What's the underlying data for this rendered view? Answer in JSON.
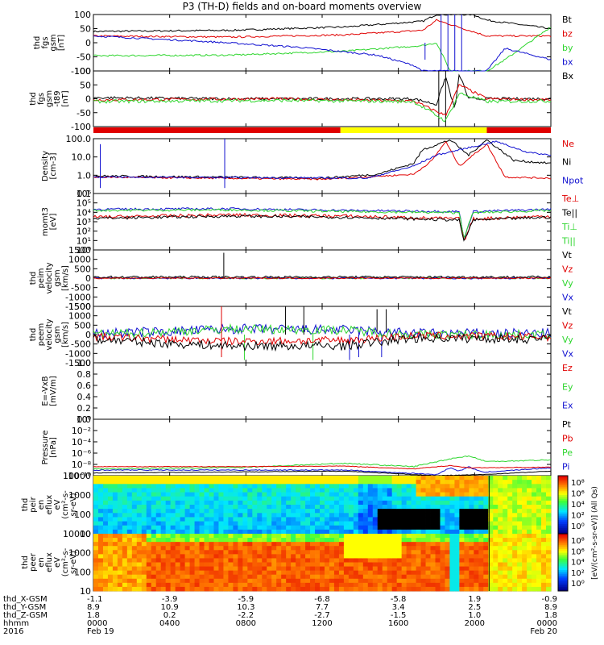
{
  "title": "P3 (TH-D) fields and on-board moments overview",
  "colors": {
    "black": "#000000",
    "red": "#e00000",
    "green": "#2fd62f",
    "blue": "#1010d0",
    "yellow": "#ffff00"
  },
  "panels": [
    {
      "id": "fgs",
      "ylabel": [
        "thd",
        "fgs",
        "gsm",
        "[nT]"
      ],
      "yticks": [
        "100",
        "50",
        "0",
        "-50",
        "-100"
      ],
      "legend": [
        {
          "text": "Bt",
          "color": "black"
        },
        {
          "text": "bz",
          "color": "red"
        },
        {
          "text": "by",
          "color": "green"
        },
        {
          "text": "bx",
          "color": "blue"
        }
      ]
    },
    {
      "id": "fgs_dsl",
      "ylabel": [
        "thd",
        "fgs",
        "gsm",
        "-t89",
        "[nT]"
      ],
      "yticks": [
        "100",
        "50",
        "0",
        "-50",
        "-100"
      ],
      "legend": [
        {
          "text": "Bx",
          "color": "black"
        }
      ]
    },
    {
      "id": "density",
      "ylabel": [
        "Density",
        "[cm-3]"
      ],
      "yticks": [
        "100.0",
        "10.0",
        "1.0",
        "0.1"
      ],
      "legend": [
        {
          "text": "Ne",
          "color": "red"
        },
        {
          "text": "Ni",
          "color": "black"
        },
        {
          "text": "Npot",
          "color": "blue"
        }
      ]
    },
    {
      "id": "temp",
      "ylabel": [
        "momt3",
        "[eV]"
      ],
      "yticks": [
        "10⁶",
        "10⁵",
        "10⁴",
        "10³",
        "10²",
        "10¹",
        "10⁰"
      ],
      "legend": [
        {
          "text": "Te⊥",
          "color": "red"
        },
        {
          "text": "Te||",
          "color": "black"
        },
        {
          "text": "Ti⊥",
          "color": "green"
        },
        {
          "text": "Ti||",
          "color": "green"
        }
      ]
    },
    {
      "id": "peim_vel",
      "ylabel": [
        "thd",
        "peim",
        "velocity",
        "gsm",
        "[km/s]"
      ],
      "yticks": [
        "1500",
        "1000",
        "500",
        "0",
        "-500",
        "-1000",
        "-1500"
      ],
      "legend": [
        {
          "text": "Vt",
          "color": "black"
        },
        {
          "text": "Vz",
          "color": "red"
        },
        {
          "text": "Vy",
          "color": "green"
        },
        {
          "text": "Vx",
          "color": "blue"
        }
      ]
    },
    {
      "id": "peem_vel",
      "ylabel": [
        "thd",
        "peem",
        "velocity",
        "gsm",
        "[km/s]"
      ],
      "yticks": [
        "1500",
        "1000",
        "500",
        "0",
        "-500",
        "-1000",
        "-1500"
      ],
      "legend": [
        {
          "text": "Vt",
          "color": "black"
        },
        {
          "text": "Vz",
          "color": "red"
        },
        {
          "text": "Vy",
          "color": "green"
        },
        {
          "text": "Vx",
          "color": "blue"
        }
      ]
    },
    {
      "id": "efield",
      "ylabel": [
        "E=-VxB",
        "[mV/m]"
      ],
      "yticks": [
        "1.0",
        "0.8",
        "0.6",
        "0.4",
        "0.2",
        "0.0"
      ],
      "legend": [
        {
          "text": "Ez",
          "color": "red"
        },
        {
          "text": "Ey",
          "color": "green"
        },
        {
          "text": "Ex",
          "color": "blue"
        }
      ]
    },
    {
      "id": "pressure",
      "ylabel": [
        "Pressure",
        "[nPa]"
      ],
      "yticks": [
        "10⁰",
        "10⁻²",
        "10⁻⁴",
        "10⁻⁶",
        "10⁻⁸",
        "10⁻¹⁰"
      ],
      "legend": [
        {
          "text": "Pt",
          "color": "black"
        },
        {
          "text": "Pb",
          "color": "red"
        },
        {
          "text": "Pe",
          "color": "green"
        },
        {
          "text": "Pi",
          "color": "blue"
        }
      ]
    },
    {
      "id": "peir_spec",
      "ylabel": [
        "thd",
        "peir",
        "en",
        "eflux",
        "eV",
        "(cm²-s-",
        "sr-eV)"
      ],
      "yticks": [
        "10000",
        "1000",
        "100",
        "10"
      ],
      "legend": []
    },
    {
      "id": "peer_spec",
      "ylabel": [
        "thd",
        "peer",
        "en",
        "eflux",
        "eV",
        "(cm²-s-",
        "sr-eV)"
      ],
      "yticks": [
        "10000",
        "1000",
        "100",
        "10"
      ],
      "legend": []
    }
  ],
  "colorbar": {
    "ticks": [
      "10⁸",
      "10⁶",
      "10⁴",
      "10²",
      "10⁰"
    ],
    "label": "[eV/(cm²-s-sr-eV)] (All Qs)"
  },
  "footer": {
    "rows": [
      {
        "label": "thd_X-GSM",
        "values": [
          "-1.1",
          "-3.9",
          "-5.9",
          "-6.8",
          "-5.8",
          "1.9",
          "-0.9"
        ]
      },
      {
        "label": "thd_Y-GSM",
        "values": [
          "8.9",
          "10.9",
          "10.3",
          "7.7",
          "3.4",
          "2.5",
          "8.9"
        ]
      },
      {
        "label": "thd_Z-GSM",
        "values": [
          "1.8",
          "0.2",
          "-2.2",
          "-2.7",
          "-1.5",
          "1.0",
          "1.8"
        ]
      },
      {
        "label": "hhmm",
        "values": [
          "0000",
          "0400",
          "0800",
          "1200",
          "1600",
          "2000",
          "0000"
        ]
      },
      {
        "label": "2016",
        "values": [
          "Feb 19",
          "",
          "",
          "",
          "",
          "",
          "Feb 20"
        ]
      }
    ]
  },
  "chart_data": {
    "type": "line",
    "title": "P3 (TH-D) fields and on-board moments overview",
    "x": [
      "0000",
      "0400",
      "0800",
      "1200",
      "1600",
      "2000",
      "0000"
    ],
    "xlabel": "hhmm",
    "series": [
      {
        "name": "Bt",
        "panel": "fgs",
        "values": [
          40,
          45,
          55,
          60,
          80,
          100,
          95
        ]
      },
      {
        "name": "bz",
        "panel": "fgs",
        "values": [
          25,
          20,
          25,
          30,
          45,
          100,
          40
        ]
      },
      {
        "name": "by",
        "panel": "fgs",
        "values": [
          -40,
          -45,
          -35,
          -20,
          0,
          -100,
          45
        ]
      },
      {
        "name": "bx",
        "panel": "fgs",
        "values": [
          20,
          5,
          -15,
          -40,
          -65,
          -100,
          -60
        ]
      },
      {
        "name": "Ni",
        "panel": "density",
        "values": [
          0.35,
          0.3,
          0.3,
          0.25,
          2.0,
          100,
          0.6
        ]
      },
      {
        "name": "Ne",
        "panel": "density",
        "values": [
          0.4,
          0.35,
          0.35,
          0.3,
          1.0,
          5.0,
          0.3
        ]
      },
      {
        "name": "Pt",
        "panel": "pressure",
        "values": [
          0.04,
          0.04,
          0.05,
          0.06,
          0.3,
          0.5,
          0.1
        ]
      }
    ]
  }
}
